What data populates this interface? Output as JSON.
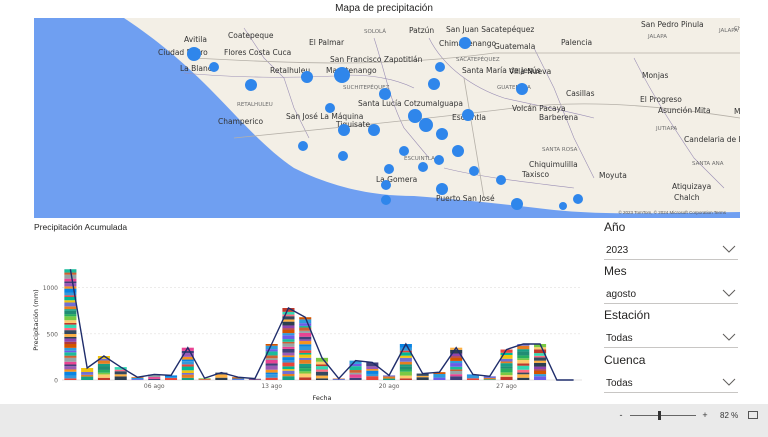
{
  "map": {
    "title": "Mapa de precipitación",
    "copyright": "© 2023 TomTom, © 2024 Microsoft Corporation  Terms",
    "places": [
      "Avitila",
      "Coatepeque",
      "Ciudad Pedro",
      "Flores Costa Cuca",
      "El Palmar",
      "SOLOLÁ",
      "Patzún",
      "San Juan Sacatepéquez",
      "Chimaltenango",
      "Guatemala",
      "Palencia",
      "San Pedro Pinula",
      "JALAPA",
      "JALAPA",
      "La Blanca",
      "Retalhuleu",
      "Mazatenango",
      "San Francisco Zapotitlán",
      "SACATEPÉQUEZ",
      "Santa María de Jesús",
      "Villa Nueva",
      "Monjas",
      "RETALHULEU",
      "SUCHITEPÉQUEZ",
      "GUATEMALA",
      "Casillas",
      "El Progreso",
      "Champerico",
      "Santa Lucía Cotzumalguapa",
      "Volcán Pacaya",
      "Barberena",
      "JUTIAPA",
      "San José La Máquina",
      "Tiquisate",
      "Escuintla",
      "Asunción Mita",
      "Me",
      "SANTA ROSA",
      "Candelaria de La Frontera",
      "ESCUINTLA",
      "Chiquimulilla",
      "Moyuta",
      "SANTA ANA",
      "Taxisco",
      "La Gomera",
      "Atiquizaya",
      "Puerto San José",
      "Chalch",
      "CHI"
    ]
  },
  "chart": {
    "title": "Precipitación Acumulada"
  },
  "chart_data": {
    "type": "bar",
    "xlabel": "Fecha",
    "ylabel": "Precipitación (mm)",
    "ylim": [
      0,
      1300
    ],
    "yticks": [
      0,
      500,
      1000
    ],
    "xtick_labels": [
      "06 ago",
      "13 ago",
      "20 ago",
      "27 ago"
    ],
    "xtick_days": [
      6,
      13,
      20,
      27
    ],
    "days": [
      1,
      2,
      3,
      4,
      5,
      6,
      7,
      8,
      9,
      10,
      11,
      12,
      13,
      14,
      15,
      16,
      17,
      18,
      19,
      20,
      21,
      22,
      23,
      24,
      25,
      26,
      27,
      28,
      29,
      30,
      31
    ],
    "values": [
      1200,
      130,
      260,
      140,
      30,
      60,
      50,
      350,
      20,
      80,
      30,
      15,
      390,
      780,
      680,
      240,
      15,
      210,
      190,
      50,
      390,
      70,
      85,
      350,
      60,
      40,
      330,
      390,
      390,
      0,
      0
    ],
    "line_values": [
      1200,
      130,
      260,
      140,
      30,
      60,
      50,
      350,
      20,
      80,
      30,
      15,
      390,
      780,
      680,
      240,
      15,
      210,
      190,
      50,
      390,
      70,
      85,
      350,
      60,
      40,
      330,
      390,
      390,
      0,
      0
    ],
    "line_color": "#1f2d6b",
    "segment_colors": [
      "#e8463b",
      "#2e9cdb",
      "#7ac943",
      "#f7931e",
      "#8e44ad",
      "#16a085",
      "#e84393",
      "#34495e",
      "#f1c40f",
      "#1abc9c",
      "#c0392b",
      "#3498db",
      "#d35400",
      "#27ae60",
      "#9b59b6",
      "#2c3e50",
      "#e67e22",
      "#95a5a6",
      "#ff6b81",
      "#00b894",
      "#6c5ce7",
      "#fdcb6e",
      "#0984e3",
      "#b33939",
      "#218c74",
      "#40407a",
      "#ffb142",
      "#706fd3",
      "#cd6133",
      "#33d9b2"
    ]
  },
  "slicers": [
    {
      "title": "Año",
      "value": "2023"
    },
    {
      "title": "Mes",
      "value": "agosto"
    },
    {
      "title": "Estación",
      "value": "Todas"
    },
    {
      "title": "Cuenca",
      "value": "Todas"
    }
  ],
  "zoom": {
    "minus": "-",
    "plus": "+",
    "level": "82 %",
    "position": 0.45
  }
}
